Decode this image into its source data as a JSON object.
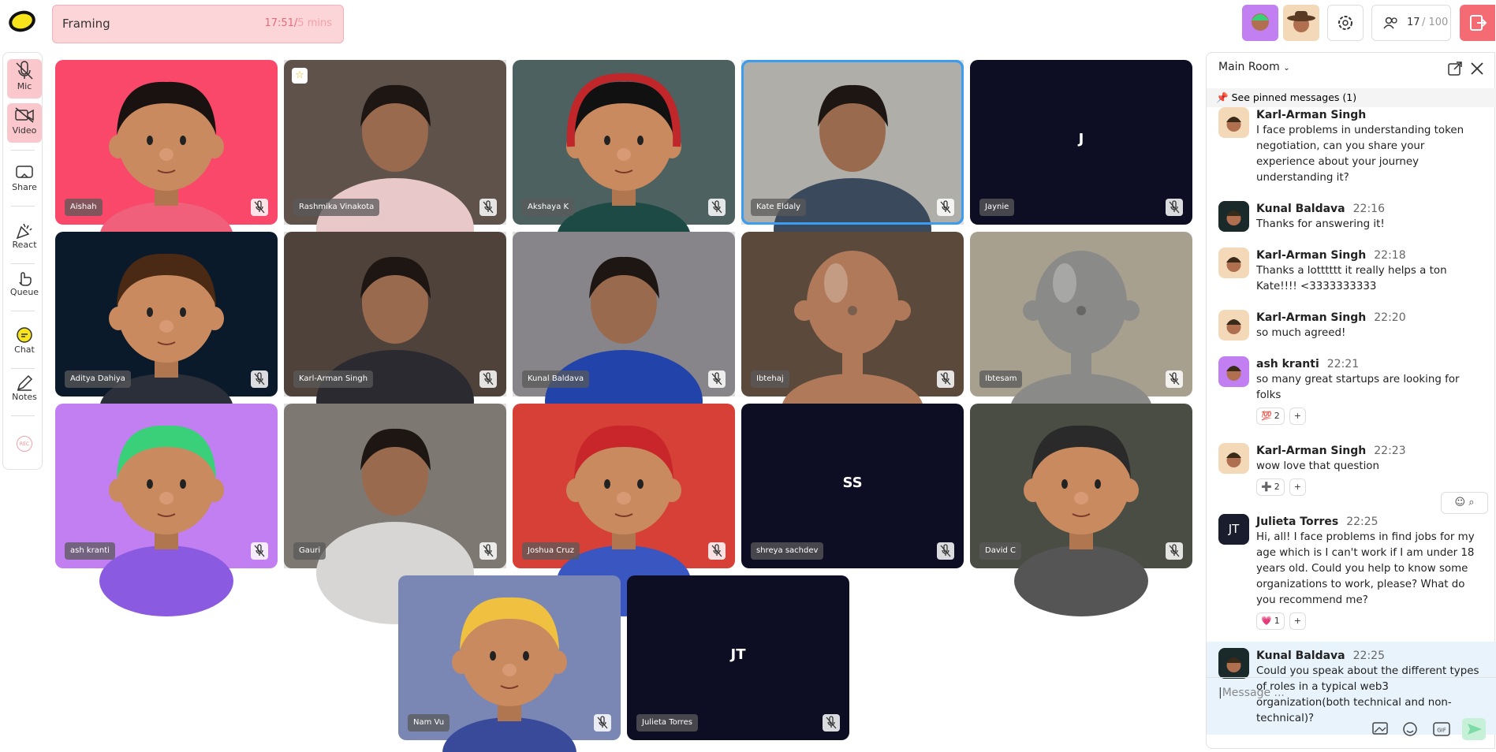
{
  "header": {
    "session_title": "Framing",
    "timer_elapsed": "17:51/",
    "timer_total": "5 mins",
    "participants_count": "17",
    "participants_limit": "/ 100"
  },
  "sidebar": [
    {
      "label": "Mic",
      "active": true
    },
    {
      "label": "Video",
      "active": true
    },
    {
      "label": "Share",
      "active": false
    },
    {
      "label": "React",
      "active": false
    },
    {
      "label": "Queue",
      "active": false
    },
    {
      "label": "Chat",
      "active": false
    },
    {
      "label": "Notes",
      "active": false
    },
    {
      "label": "REC",
      "active": false
    }
  ],
  "tiles": [
    {
      "name": "Aishah",
      "kind": "avatar",
      "bg": "#f9486a",
      "hair": "#1a1210",
      "shirt": "#f0607a"
    },
    {
      "name": "Rashmika Vinakota",
      "kind": "video",
      "bg": "#6b5e56",
      "person": "#e8c8c8",
      "star": true
    },
    {
      "name": "Akshaya K",
      "kind": "avatar",
      "bg": "#4d6160",
      "hair": "#111",
      "shirt": "#1d4a44",
      "headphones": "#c0262a"
    },
    {
      "name": "Kate Eldaly",
      "kind": "video",
      "bg": "#c9c6c0",
      "person": "#3a4a5c",
      "active": true
    },
    {
      "name": "Jaynie",
      "kind": "initials",
      "bg": "#0d0e24",
      "initials": "J"
    },
    {
      "name": "Aditya Dahiya",
      "kind": "avatar",
      "bg": "#0b1a2a",
      "hair": "#4a2a14",
      "shirt": "#2a2f3a"
    },
    {
      "name": "Karl-Arman Singh",
      "kind": "video",
      "bg": "#5a4c42",
      "person": "#2a2a30"
    },
    {
      "name": "Kunal Baldava",
      "kind": "video",
      "bg": "#9a989d",
      "person": "#2244aa"
    },
    {
      "name": "Ibtehaj",
      "kind": "metal",
      "bg": "#5b4a3c",
      "metal": "#b07a5a"
    },
    {
      "name": "Ibtesam",
      "kind": "metal",
      "bg": "#a8a08f",
      "metal": "#8a8a88"
    },
    {
      "name": "ash kranti",
      "kind": "avatar",
      "bg": "#c27ff1",
      "hair": "#3ad07a",
      "shirt": "#8a5ae0"
    },
    {
      "name": "Gauri",
      "kind": "video",
      "bg": "#8f8a82",
      "person": "#d8d6d4"
    },
    {
      "name": "Joshua Cruz",
      "kind": "avatar",
      "bg": "#d64036",
      "hair": "#c8262a",
      "shirt": "#3a56c0"
    },
    {
      "name": "shreya sachdev",
      "kind": "initials",
      "bg": "#0d0e24",
      "initials": "SS"
    },
    {
      "name": "David C",
      "kind": "avatar",
      "bg": "#4a4d44",
      "hair": "#2a2a2a",
      "shirt": "#555"
    },
    {
      "name": "Nam Vu",
      "kind": "avatar",
      "bg": "#7a87b5",
      "hair": "#f0c040",
      "shirt": "#3a4a9a"
    },
    {
      "name": "Julieta Torres",
      "kind": "initials",
      "bg": "#0d0e24",
      "initials": "JT"
    }
  ],
  "chat": {
    "room": "Main Room",
    "pinned": "See pinned messages (1)",
    "placeholder": "Message ...",
    "gif": "GIF",
    "messages": [
      {
        "author": "Karl-Arman Singh",
        "text": "I face problems in understanding token negotiation, can you share your experience about your journey understanding it?",
        "avatar": "#f4d9b8"
      },
      {
        "author": "Kunal Baldava",
        "time": "22:16",
        "text": "Thanks for answering it!",
        "avatar": "#1a2a2a"
      },
      {
        "author": "Karl-Arman Singh",
        "time": "22:18",
        "text": "Thanks a lotttttt it really helps a ton Kate!!!! <3333333333",
        "avatar": "#f4d9b8"
      },
      {
        "author": "Karl-Arman Singh",
        "time": "22:20",
        "text": "so much agreed!",
        "avatar": "#f4d9b8"
      },
      {
        "author": "ash kranti",
        "time": "22:21",
        "text": "so many great startups are looking for folks",
        "avatar": "#c27ff1",
        "reactions": [
          {
            "emoji": "💯",
            "count": "2"
          }
        ]
      },
      {
        "author": "Karl-Arman Singh",
        "time": "22:23",
        "text": "wow love that question",
        "avatar": "#f4d9b8",
        "reactions": [
          {
            "emoji": "➕",
            "count": "2"
          }
        ]
      },
      {
        "author": "Julieta Torres",
        "time": "22:25",
        "text": "Hi, all! I face problems in find jobs for my age which is I can't work if I am under 18 years old. Could you help to know some organizations to work, please? What do you recommend me?",
        "avatar": "#1a1d2e",
        "initials": "JT",
        "reactions": [
          {
            "emoji": "💗",
            "count": "1"
          }
        ]
      },
      {
        "author": "Kunal Baldava",
        "time": "22:25",
        "text": "Could you speak about the different types of roles in a typical web3 organization(both technical and non-technical)?",
        "avatar": "#1a2a2a",
        "highlight": true
      }
    ]
  }
}
